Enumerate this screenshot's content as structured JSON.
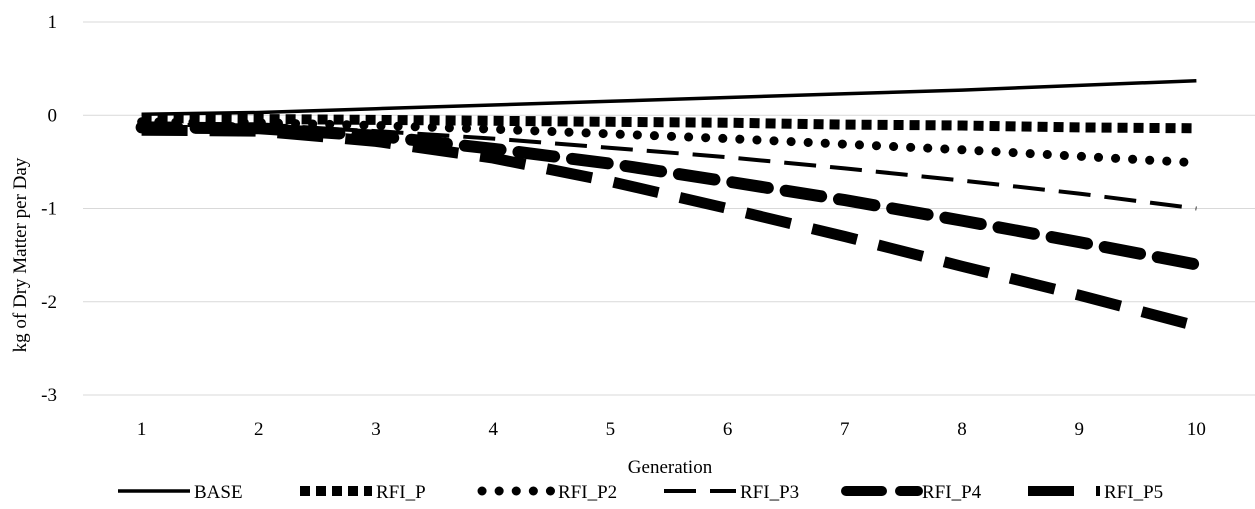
{
  "chart_data": {
    "type": "line",
    "title": "",
    "xlabel": "Generation",
    "ylabel": "kg of Dry Matter per Day",
    "x": [
      1,
      2,
      3,
      4,
      5,
      6,
      7,
      8,
      9,
      10
    ],
    "xlim": [
      0.5,
      10.5
    ],
    "ylim": [
      -3,
      1
    ],
    "yticks": [
      1,
      0,
      -1,
      -2,
      -3
    ],
    "grid": "horizontal",
    "legend_position": "bottom",
    "line_color": "#000000",
    "grid_color": "#d9d9d9",
    "series": [
      {
        "name": "BASE",
        "style": "solid",
        "values": [
          0.01,
          0.03,
          0.07,
          0.11,
          0.15,
          0.19,
          0.23,
          0.27,
          0.32,
          0.37
        ]
      },
      {
        "name": "RFI_P",
        "style": "square-dot",
        "values": [
          -0.03,
          -0.04,
          -0.05,
          -0.06,
          -0.07,
          -0.08,
          -0.1,
          -0.11,
          -0.13,
          -0.14
        ]
      },
      {
        "name": "RFI_P2",
        "style": "round-dot",
        "values": [
          -0.07,
          -0.08,
          -0.11,
          -0.15,
          -0.2,
          -0.25,
          -0.31,
          -0.37,
          -0.44,
          -0.51
        ]
      },
      {
        "name": "RFI_P3",
        "style": "dash",
        "values": [
          -0.1,
          -0.11,
          -0.17,
          -0.25,
          -0.35,
          -0.45,
          -0.57,
          -0.7,
          -0.84,
          -1.0
        ]
      },
      {
        "name": "RFI_P4",
        "style": "dash-thick",
        "values": [
          -0.13,
          -0.14,
          -0.22,
          -0.36,
          -0.52,
          -0.71,
          -0.91,
          -1.13,
          -1.36,
          -1.6
        ]
      },
      {
        "name": "RFI_P5",
        "style": "long-dash",
        "values": [
          -0.16,
          -0.17,
          -0.28,
          -0.46,
          -0.71,
          -1.0,
          -1.3,
          -1.62,
          -1.93,
          -2.26
        ]
      }
    ]
  }
}
